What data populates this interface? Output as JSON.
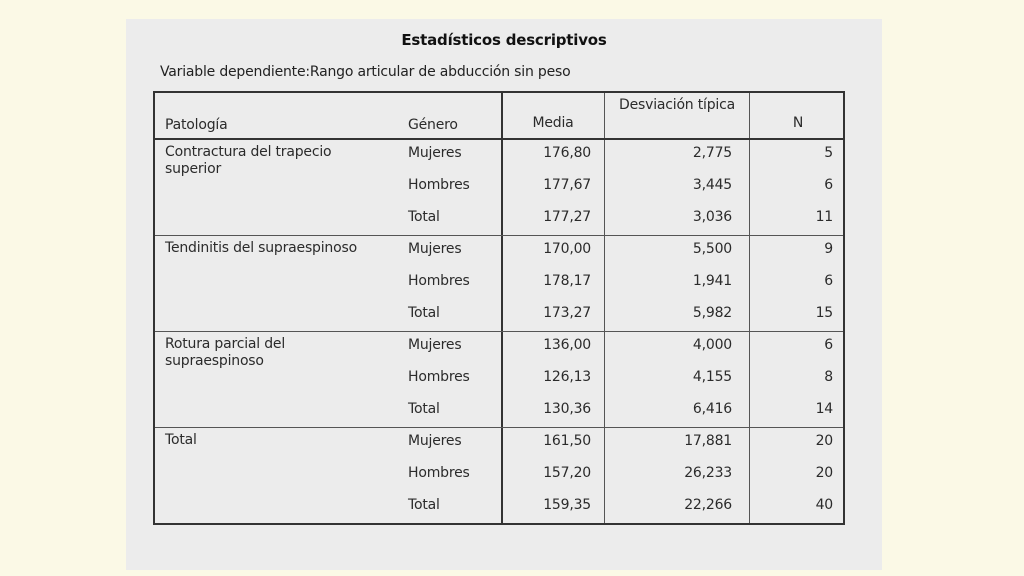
{
  "title": "Estadísticos descriptivos",
  "subtitle": "Variable dependiente:Rango articular de abducción sin peso",
  "headers": {
    "patologia": "Patología",
    "genero": "Género",
    "media": "Media",
    "desviacion": "Desviación típica",
    "n": "N"
  },
  "groups": [
    {
      "label": "Contractura del trapecio superior",
      "rows": [
        {
          "genero": "Mujeres",
          "media": "176,80",
          "desv": "2,775",
          "n": "5"
        },
        {
          "genero": "Hombres",
          "media": "177,67",
          "desv": "3,445",
          "n": "6"
        },
        {
          "genero": "Total",
          "media": "177,27",
          "desv": "3,036",
          "n": "11"
        }
      ]
    },
    {
      "label": "Tendinitis del supraespinoso",
      "rows": [
        {
          "genero": "Mujeres",
          "media": "170,00",
          "desv": "5,500",
          "n": "9"
        },
        {
          "genero": "Hombres",
          "media": "178,17",
          "desv": "1,941",
          "n": "6"
        },
        {
          "genero": "Total",
          "media": "173,27",
          "desv": "5,982",
          "n": "15"
        }
      ]
    },
    {
      "label": "Rotura parcial del supraespinoso",
      "rows": [
        {
          "genero": "Mujeres",
          "media": "136,00",
          "desv": "4,000",
          "n": "6"
        },
        {
          "genero": "Hombres",
          "media": "126,13",
          "desv": "4,155",
          "n": "8"
        },
        {
          "genero": "Total",
          "media": "130,36",
          "desv": "6,416",
          "n": "14"
        }
      ]
    },
    {
      "label": "Total",
      "rows": [
        {
          "genero": "Mujeres",
          "media": "161,50",
          "desv": "17,881",
          "n": "20"
        },
        {
          "genero": "Hombres",
          "media": "157,20",
          "desv": "26,233",
          "n": "20"
        },
        {
          "genero": "Total",
          "media": "159,35",
          "desv": "22,266",
          "n": "40"
        }
      ]
    }
  ]
}
